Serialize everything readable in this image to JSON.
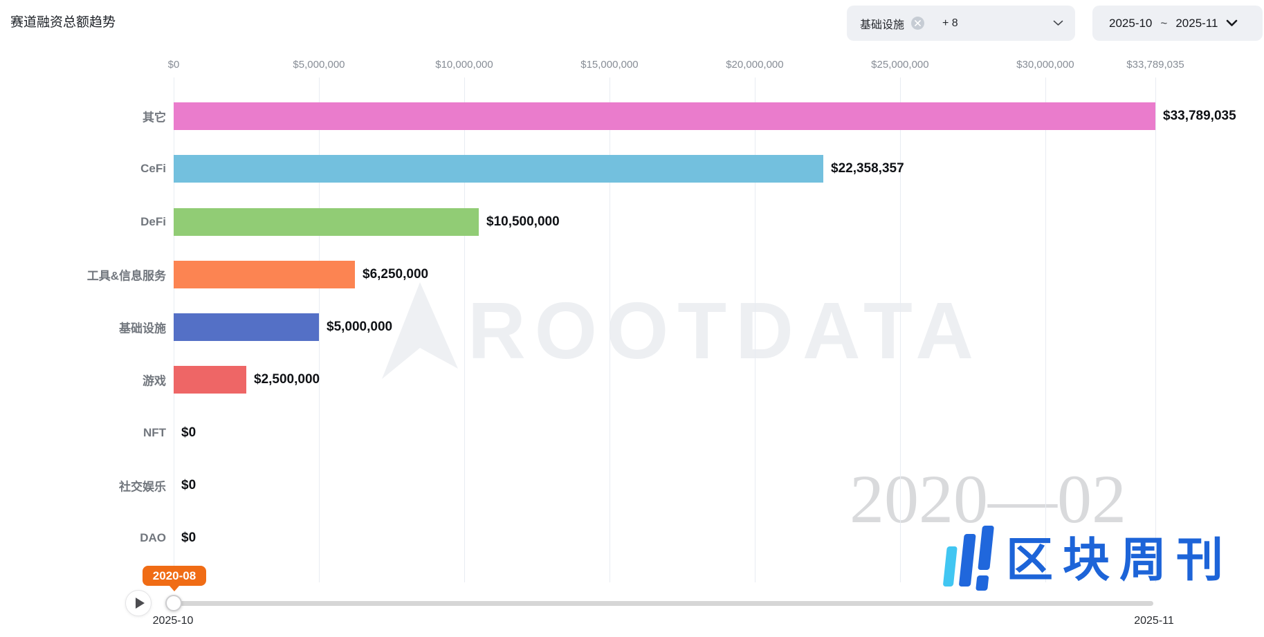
{
  "page": {
    "title": "赛道融资总额趋势"
  },
  "filter_chip": {
    "tag": "基础设施",
    "more": "+ 8"
  },
  "date_chip": {
    "start": "2025-10",
    "separator": "~",
    "end": "2025-11"
  },
  "chart_data": {
    "type": "bar",
    "orientation": "horizontal",
    "title": "赛道融资总额趋势",
    "categories": [
      "其它",
      "CeFi",
      "DeFi",
      "工具&信息服务",
      "基础设施",
      "游戏",
      "NFT",
      "社交娱乐",
      "DAO"
    ],
    "values": [
      33789035,
      22358357,
      10500000,
      6250000,
      5000000,
      2500000,
      0,
      0,
      0
    ],
    "value_labels": [
      "$33,789,035",
      "$22,358,357",
      "$10,500,000",
      "$6,250,000",
      "$5,000,000",
      "$2,500,000",
      "$0",
      "$0",
      "$0"
    ],
    "bar_colors": [
      "#ea7ccc",
      "#73c0de",
      "#91cc75",
      "#fc8452",
      "#5470c6",
      "#ee6666",
      "#cccccc",
      "#cccccc",
      "#cccccc"
    ],
    "x_axis": {
      "position": "top",
      "tick_labels": [
        "$0",
        "$5,000,000",
        "$10,000,000",
        "$15,000,000",
        "$20,000,000",
        "$25,000,000",
        "$30,000,000",
        "$33,789,035"
      ],
      "tick_values": [
        0,
        5000000,
        10000000,
        15000000,
        20000000,
        25000000,
        30000000,
        33789035
      ],
      "min": 0,
      "max": 33789035,
      "grid": true
    },
    "legend": "none",
    "watermark_text": "ROOTDATA",
    "frame_watermark": "2020—02"
  },
  "timeline": {
    "tooltip_label": "2020-08",
    "range_start_label": "2025-10",
    "range_end_label": "2025-11"
  },
  "brand_logo": {
    "text": "区块周刊"
  },
  "colors": {
    "accent_orange": "#f06c15",
    "chip_bg": "#eef0f4",
    "grid": "#e8ecf2",
    "track_gray": "#d6d6d6",
    "logo_blue": "#1d64d8",
    "logo_cyan": "#41c6f2",
    "watermark_gray": "#edeff2",
    "frame_watermark_gray": "#d9dadc"
  }
}
